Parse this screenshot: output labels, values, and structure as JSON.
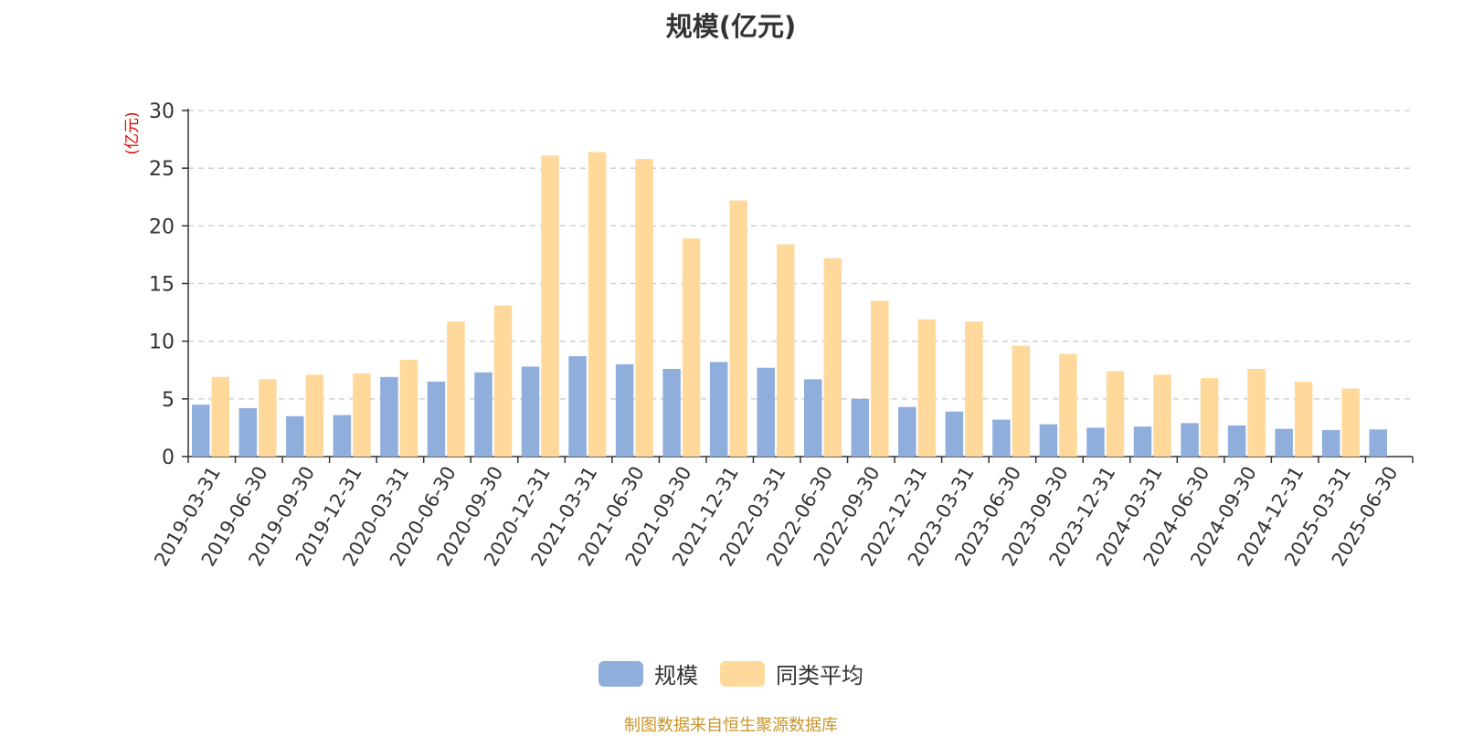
{
  "colors": {
    "series_1": "#8faedc",
    "series_2": "#ffd99b",
    "axis": "#333333",
    "grid": "#cccccc",
    "unit_label": "#e60000",
    "source_note": "#c9952a"
  },
  "source_note": "制图数据来自恒生聚源数据库",
  "chart_data": {
    "type": "bar",
    "title": "规模(亿元)",
    "ylabel": "(亿元)",
    "xlabel": "",
    "ylim": [
      0,
      30
    ],
    "yticks": [
      0,
      5,
      10,
      15,
      20,
      25,
      30
    ],
    "grid": true,
    "legend_position": "bottom",
    "categories": [
      "2019-03-31",
      "2019-06-30",
      "2019-09-30",
      "2019-12-31",
      "2020-03-31",
      "2020-06-30",
      "2020-09-30",
      "2020-12-31",
      "2021-03-31",
      "2021-06-30",
      "2021-09-30",
      "2021-12-31",
      "2022-03-31",
      "2022-06-30",
      "2022-09-30",
      "2022-12-31",
      "2023-03-31",
      "2023-06-30",
      "2023-09-30",
      "2023-12-31",
      "2024-03-31",
      "2024-06-30",
      "2024-09-30",
      "2024-12-31",
      "2025-03-31",
      "2025-06-30"
    ],
    "series": [
      {
        "name": "规模",
        "values": [
          4.5,
          4.2,
          3.5,
          3.6,
          6.9,
          6.5,
          7.3,
          7.8,
          8.7,
          8.0,
          7.6,
          8.2,
          7.7,
          6.7,
          5.0,
          4.3,
          3.9,
          3.2,
          2.8,
          2.5,
          2.6,
          2.9,
          2.7,
          2.4,
          2.3,
          2.35
        ]
      },
      {
        "name": "同类平均",
        "values": [
          6.9,
          6.7,
          7.1,
          7.2,
          8.4,
          11.7,
          13.1,
          26.1,
          26.4,
          25.8,
          18.9,
          22.2,
          18.4,
          17.2,
          13.5,
          11.9,
          11.7,
          9.6,
          8.9,
          7.4,
          7.1,
          6.8,
          7.6,
          6.5,
          5.9,
          null
        ]
      }
    ]
  }
}
